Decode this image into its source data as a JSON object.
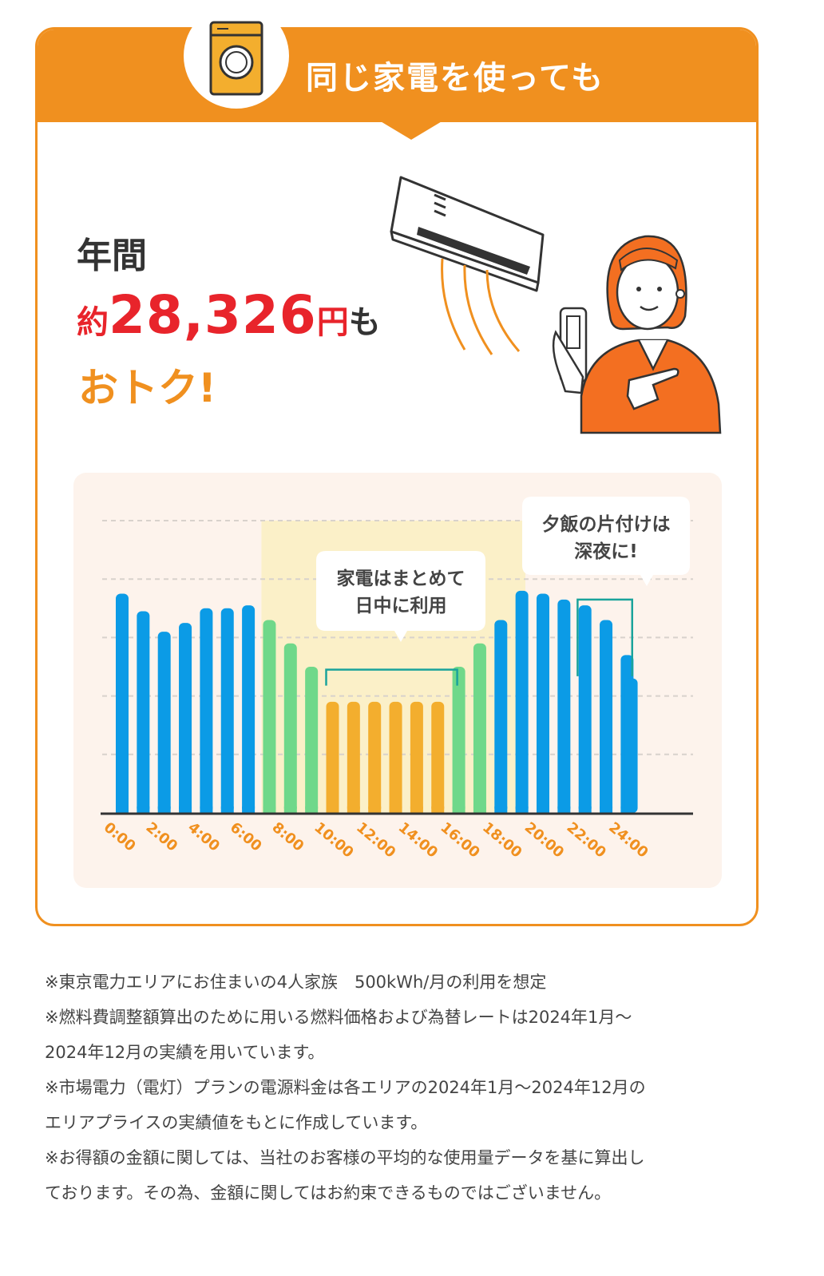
{
  "header": {
    "title": "同じ家電を使っても"
  },
  "headline": {
    "line1": "年間",
    "prefix": "約",
    "amount": "28,326",
    "unit": "円",
    "suffix": "も",
    "line3": "おトク!"
  },
  "callouts": {
    "daytime": [
      "家電はまとめて",
      "日中に利用"
    ],
    "night": [
      "夕飯の片付けは",
      "深夜に!"
    ]
  },
  "chart_data": {
    "type": "bar",
    "title": "",
    "xlabel": "",
    "ylabel": "",
    "ylim": [
      0,
      100
    ],
    "x_ticks": [
      "0:00",
      "2:00",
      "4:00",
      "6:00",
      "8:00",
      "10:00",
      "12:00",
      "14:00",
      "16:00",
      "18:00",
      "20:00",
      "22:00",
      "24:00"
    ],
    "hours": [
      0,
      1,
      2,
      3,
      4,
      5,
      6,
      7,
      8,
      9,
      10,
      11,
      12,
      13,
      14,
      15,
      16,
      17,
      18,
      19,
      20,
      21,
      22,
      23,
      24
    ],
    "values": [
      75,
      69,
      62,
      65,
      70,
      70,
      71,
      66,
      58,
      50,
      38,
      38,
      38,
      38,
      38,
      38,
      50,
      58,
      66,
      76,
      75,
      73,
      71,
      66,
      54
    ],
    "extra_bar": {
      "hour": 24.5,
      "value": 46
    },
    "bar_colors": [
      "#0b9be6",
      "#0b9be6",
      "#0b9be6",
      "#0b9be6",
      "#0b9be6",
      "#0b9be6",
      "#0b9be6",
      "#6fd88a",
      "#6fd88a",
      "#6fd88a",
      "#f3ae2e",
      "#f3ae2e",
      "#f3ae2e",
      "#f3ae2e",
      "#f3ae2e",
      "#f3ae2e",
      "#6fd88a",
      "#6fd88a",
      "#0b9be6",
      "#0b9be6",
      "#0b9be6",
      "#0b9be6",
      "#0b9be6",
      "#0b9be6",
      "#0b9be6"
    ],
    "grid": true,
    "highlight_band": {
      "from_hour": 7,
      "to_hour": 20,
      "color": "#fbf0c8"
    },
    "colors": {
      "blue": "#0b9be6",
      "green": "#6fd88a",
      "orange": "#f3ae2e",
      "tick_label": "#f0901f",
      "bracket": "#1aa39b"
    }
  },
  "notes": [
    "※東京電力エリアにお住まいの4人家族　500kWh/月の利用を想定",
    "※燃料費調整額算出のために用いる燃料価格および為替レートは2024年1月〜",
    "2024年12月の実績を用いています。",
    "※市場電力（電灯）プランの電源料金は各エリアの2024年1月〜2024年12月の",
    "エリアプライスの実績値をもとに作成しています。",
    "※お得額の金額に関しては、当社のお客様の平均的な使用量データを基に算出し",
    "ております。その為、金額に関してはお約束できるものではございません。"
  ]
}
